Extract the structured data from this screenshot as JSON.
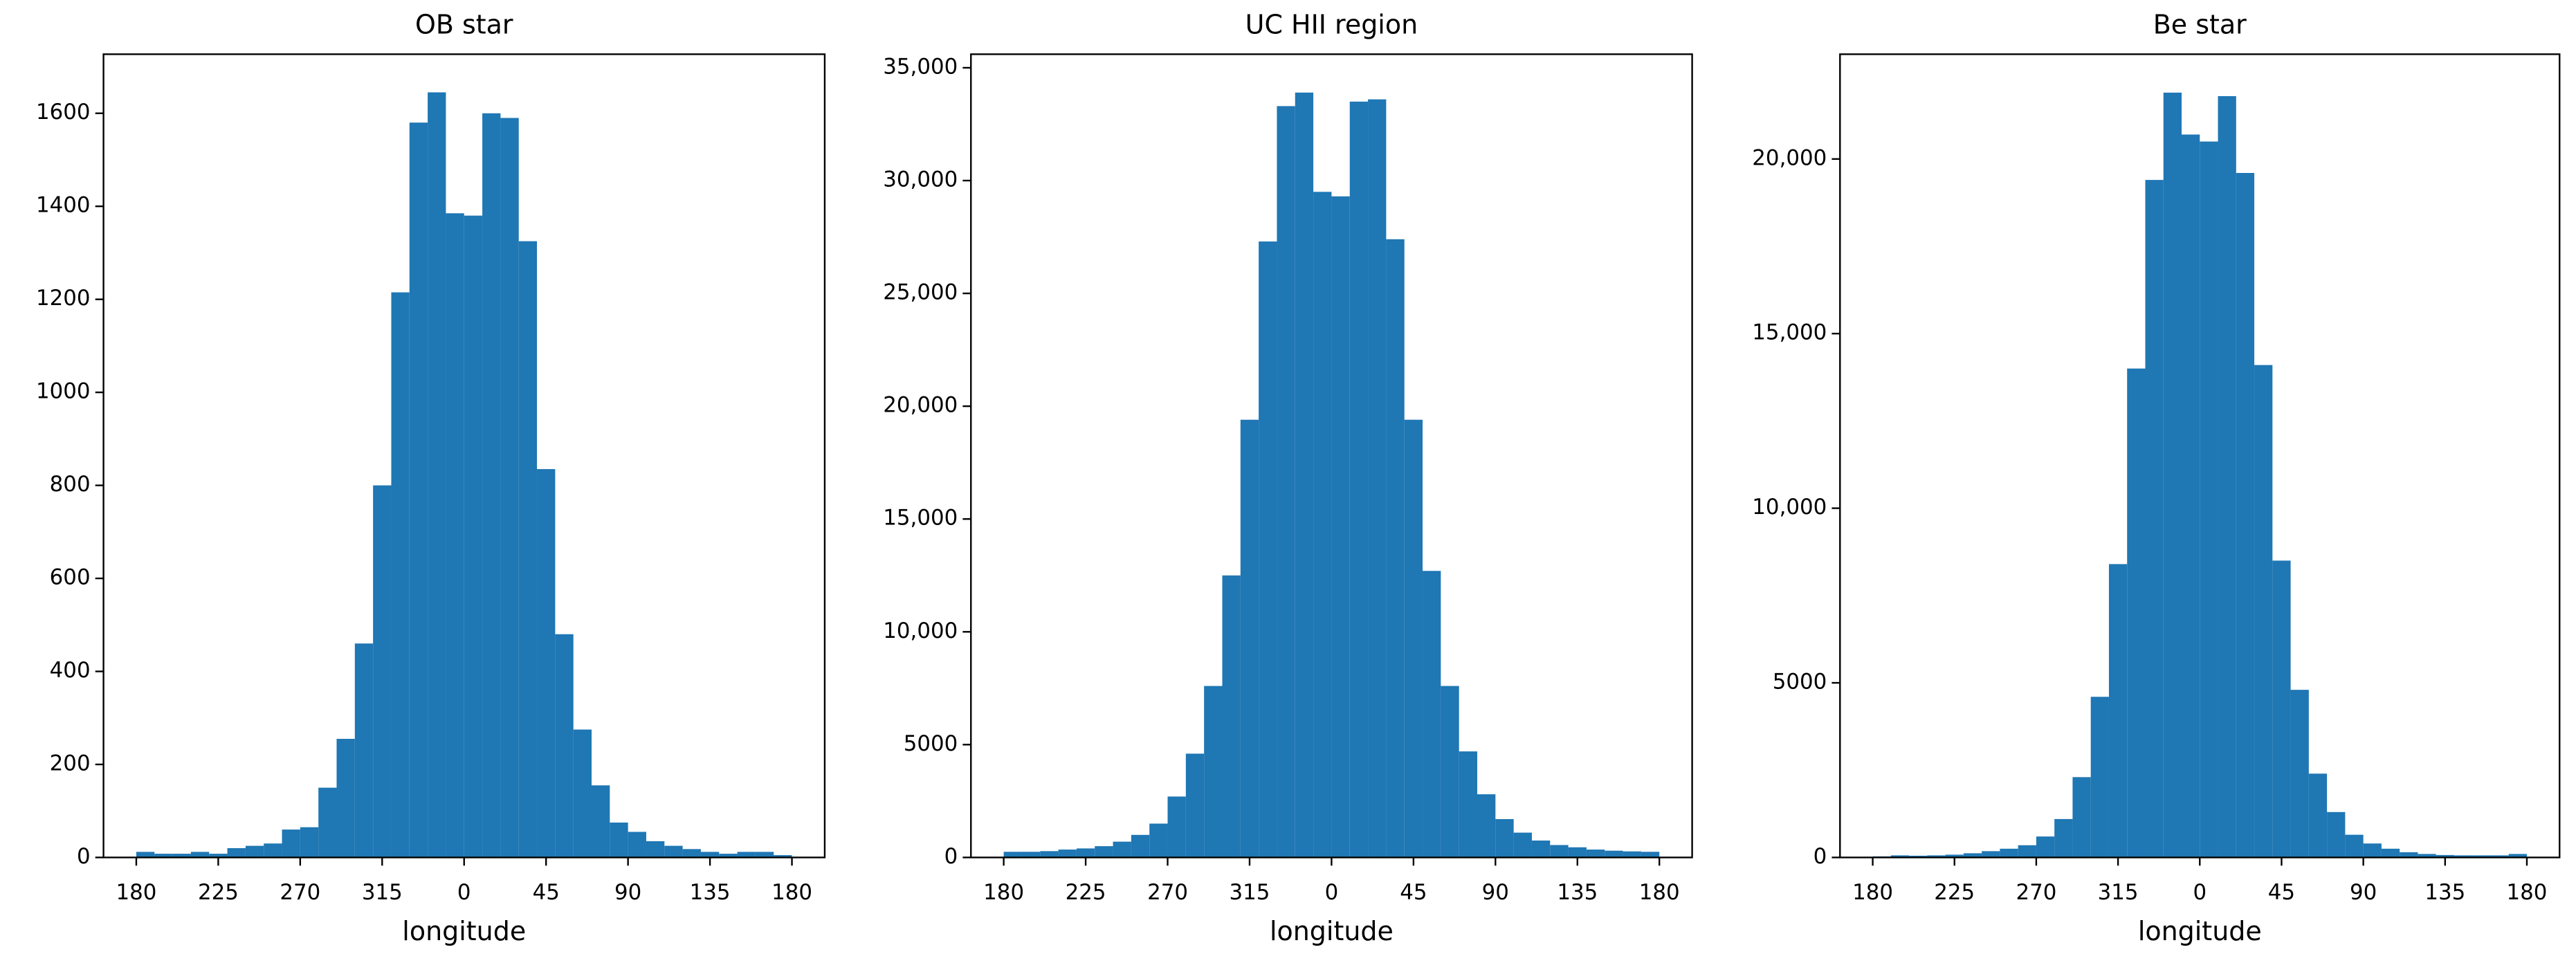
{
  "chart_data": [
    {
      "type": "histogram",
      "title": "OB star",
      "xlabel": "longitude",
      "color": "#1f77b4",
      "bins": [
        -180,
        -170,
        -160,
        -150,
        -140,
        -130,
        -120,
        -110,
        -100,
        -90,
        -80,
        -70,
        -60,
        -50,
        -40,
        -30,
        -20,
        -10,
        0,
        10,
        20,
        30,
        40,
        50,
        60,
        70,
        80,
        90,
        100,
        110,
        120,
        130,
        140,
        150,
        160,
        170,
        180
      ],
      "values": [
        12,
        8,
        8,
        12,
        8,
        20,
        25,
        30,
        60,
        65,
        150,
        255,
        460,
        800,
        1215,
        1580,
        1645,
        1385,
        1380,
        1600,
        1590,
        1325,
        835,
        480,
        275,
        155,
        75,
        55,
        35,
        25,
        18,
        12,
        8,
        12,
        12,
        5
      ],
      "xlim": [
        -198,
        198
      ],
      "xticks": [
        {
          "value": -180,
          "label": "180"
        },
        {
          "value": -135,
          "label": "225"
        },
        {
          "value": -90,
          "label": "270"
        },
        {
          "value": -45,
          "label": "315"
        },
        0,
        45,
        90,
        135,
        180
      ],
      "ylim": [
        0,
        1727
      ],
      "yticks": [
        0,
        200,
        400,
        600,
        800,
        1000,
        1200,
        1400,
        1600
      ]
    },
    {
      "type": "histogram",
      "title": "UC HII region",
      "xlabel": "longitude",
      "color": "#1f77b4",
      "bins": [
        -180,
        -170,
        -160,
        -150,
        -140,
        -130,
        -120,
        -110,
        -100,
        -90,
        -80,
        -70,
        -60,
        -50,
        -40,
        -30,
        -20,
        -10,
        0,
        10,
        20,
        30,
        40,
        50,
        60,
        70,
        80,
        90,
        100,
        110,
        120,
        130,
        140,
        150,
        160,
        170,
        180
      ],
      "values": [
        250,
        250,
        280,
        350,
        400,
        500,
        700,
        1000,
        1500,
        2700,
        4600,
        7600,
        12500,
        19400,
        27300,
        33300,
        33900,
        29500,
        29300,
        33500,
        33600,
        27400,
        19400,
        12700,
        7600,
        4700,
        2800,
        1700,
        1100,
        750,
        550,
        450,
        350,
        300,
        270,
        250
      ],
      "xlim": [
        -198,
        198
      ],
      "xticks": [
        {
          "value": -180,
          "label": "180"
        },
        {
          "value": -135,
          "label": "225"
        },
        {
          "value": -90,
          "label": "270"
        },
        {
          "value": -45,
          "label": "315"
        },
        0,
        45,
        90,
        135,
        180
      ],
      "ylim": [
        0,
        35600
      ],
      "yticks": [
        0,
        5000,
        {
          "value": 10000,
          "label": "10,000"
        },
        {
          "value": 15000,
          "label": "15,000"
        },
        {
          "value": 20000,
          "label": "20,000"
        },
        {
          "value": 25000,
          "label": "25,000"
        },
        {
          "value": 30000,
          "label": "30,000"
        },
        {
          "value": 35000,
          "label": "35,000"
        }
      ]
    },
    {
      "type": "histogram",
      "title": "Be star",
      "xlabel": "longitude",
      "color": "#1f77b4",
      "bins": [
        -180,
        -170,
        -160,
        -150,
        -140,
        -130,
        -120,
        -110,
        -100,
        -90,
        -80,
        -70,
        -60,
        -50,
        -40,
        -30,
        -20,
        -10,
        0,
        10,
        20,
        30,
        40,
        50,
        60,
        70,
        80,
        90,
        100,
        110,
        120,
        130,
        140,
        150,
        160,
        170,
        180
      ],
      "values": [
        30,
        60,
        50,
        60,
        80,
        120,
        180,
        250,
        350,
        600,
        1100,
        2300,
        4600,
        8400,
        14000,
        19400,
        21900,
        20700,
        20500,
        21800,
        19600,
        14100,
        8500,
        4800,
        2400,
        1300,
        650,
        400,
        250,
        150,
        100,
        70,
        60,
        60,
        60,
        100
      ],
      "xlim": [
        -198,
        198
      ],
      "xticks": [
        {
          "value": -180,
          "label": "180"
        },
        {
          "value": -135,
          "label": "225"
        },
        {
          "value": -90,
          "label": "270"
        },
        {
          "value": -45,
          "label": "315"
        },
        0,
        45,
        90,
        135,
        180
      ],
      "ylim": [
        0,
        23000
      ],
      "yticks": [
        0,
        5000,
        {
          "value": 10000,
          "label": "10,000"
        },
        {
          "value": 15000,
          "label": "15,000"
        },
        {
          "value": 20000,
          "label": "20,000"
        }
      ]
    }
  ]
}
